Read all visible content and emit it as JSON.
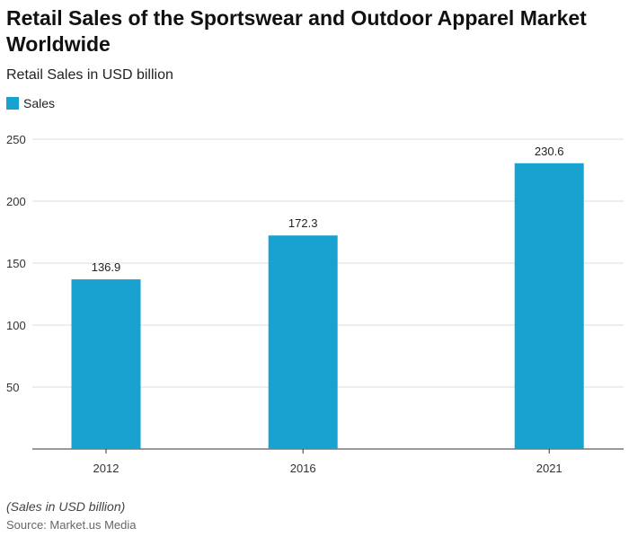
{
  "chart_data": {
    "type": "bar",
    "title": "Retail Sales of the Sportswear and Outdoor Apparel Market Worldwide",
    "subtitle": "Retail Sales in USD billion",
    "categories": [
      "2012",
      "2016",
      "2021"
    ],
    "series": [
      {
        "name": "Sales",
        "values": [
          136.9,
          172.3,
          230.6
        ],
        "color": "#18a2d0"
      }
    ],
    "data_labels": [
      "136.9",
      "172.3",
      "230.6"
    ],
    "yticks": [
      "50",
      "100",
      "150",
      "200",
      "250"
    ],
    "ylim": [
      0,
      250
    ],
    "grid": true,
    "legend": "top-left",
    "note": "(Sales in USD billion)",
    "source": "Source: Market.us Media"
  }
}
